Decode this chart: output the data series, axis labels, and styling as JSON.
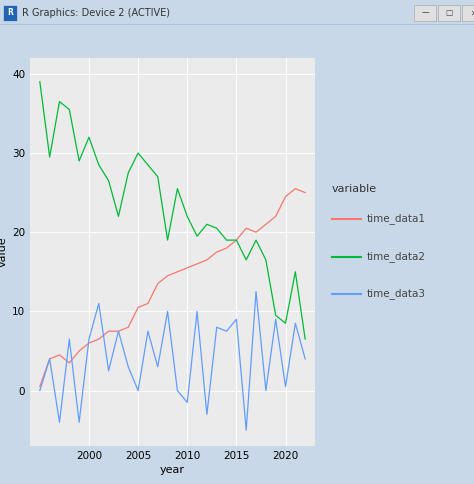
{
  "years": [
    1995,
    1996,
    1997,
    1998,
    1999,
    2000,
    2001,
    2002,
    2003,
    2004,
    2005,
    2006,
    2007,
    2008,
    2009,
    2010,
    2011,
    2012,
    2013,
    2014,
    2015,
    2016,
    2017,
    2018,
    2019,
    2020,
    2021,
    2022
  ],
  "time_data1": [
    0.5,
    4.0,
    4.5,
    3.5,
    5.0,
    6.0,
    6.5,
    7.5,
    7.5,
    8.0,
    10.5,
    11.0,
    13.5,
    14.5,
    15.0,
    15.5,
    16.0,
    16.5,
    17.5,
    18.0,
    19.0,
    20.5,
    20.0,
    21.0,
    22.0,
    24.5,
    25.5,
    25.0
  ],
  "time_data2": [
    39.0,
    29.5,
    36.5,
    35.5,
    29.0,
    32.0,
    28.5,
    26.5,
    22.0,
    27.5,
    30.0,
    28.5,
    27.0,
    19.0,
    25.5,
    22.0,
    19.5,
    21.0,
    20.5,
    19.0,
    19.0,
    16.5,
    19.0,
    16.5,
    9.5,
    8.5,
    15.0,
    6.5
  ],
  "time_data3": [
    0.0,
    4.0,
    -4.0,
    6.5,
    -4.0,
    6.5,
    11.0,
    2.5,
    7.5,
    3.0,
    0.0,
    7.5,
    3.0,
    10.0,
    0.0,
    -1.5,
    10.0,
    -3.0,
    8.0,
    7.5,
    9.0,
    -5.0,
    12.5,
    0.0,
    9.0,
    0.5,
    8.5,
    4.0
  ],
  "color1": "#F8766D",
  "color2": "#00BA38",
  "color3": "#619CFF",
  "plot_bg": "#EBEBEB",
  "grid_color": "#FFFFFF",
  "window_bg": "#FFFFFF",
  "window_border": "#A8C4D8",
  "window_outer": "#C8D8E8",
  "titlebar_bg": "#EEF4F8",
  "titlebar_text": "#333333",
  "xlabel": "year",
  "ylabel": "value",
  "legend_title": "variable",
  "legend_labels": [
    "time_data1",
    "time_data2",
    "time_data3"
  ],
  "xlim": [
    1994,
    2023
  ],
  "ylim": [
    -7,
    42
  ],
  "xticks": [
    2000,
    2005,
    2010,
    2015,
    2020
  ],
  "yticks": [
    0,
    10,
    20,
    30,
    40
  ],
  "title_bar_text": "R Graphics: Device 2 (ACTIVE)"
}
